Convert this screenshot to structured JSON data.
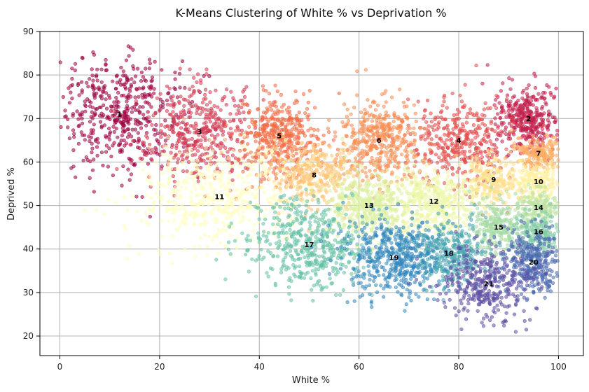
{
  "chart_data": {
    "type": "scatter",
    "title": "K-Means Clustering of White % vs Deprivation %",
    "xlabel": "White %",
    "ylabel": "Deprived %",
    "xlim": [
      -4,
      105
    ],
    "ylim": [
      15.5,
      90
    ],
    "xticks": [
      0,
      20,
      40,
      60,
      80,
      100
    ],
    "yticks": [
      20,
      30,
      40,
      50,
      60,
      70,
      80,
      90
    ],
    "grid": true,
    "point_alpha": 0.55,
    "clusters": [
      {
        "label": "1",
        "center": [
          12,
          71
        ],
        "spread": [
          6.5,
          6.5
        ],
        "count": 500,
        "color": "#9e0142"
      },
      {
        "label": "2",
        "center": [
          94,
          70
        ],
        "spread": [
          3.5,
          3.8
        ],
        "count": 380,
        "color": "#c3204d"
      },
      {
        "label": "3",
        "center": [
          28,
          67
        ],
        "spread": [
          5.0,
          5.5
        ],
        "count": 420,
        "color": "#d33c53"
      },
      {
        "label": "4",
        "center": [
          80,
          65
        ],
        "spread": [
          5.0,
          5.0
        ],
        "count": 380,
        "color": "#e14c4a"
      },
      {
        "label": "5",
        "center": [
          44,
          66
        ],
        "spread": [
          3.8,
          4.8
        ],
        "count": 420,
        "color": "#f26b43"
      },
      {
        "label": "6",
        "center": [
          64,
          65
        ],
        "spread": [
          4.2,
          4.8
        ],
        "count": 420,
        "color": "#f88c51"
      },
      {
        "label": "7",
        "center": [
          96,
          62
        ],
        "spread": [
          2.2,
          2.0
        ],
        "count": 180,
        "color": "#fdac61"
      },
      {
        "label": "8",
        "center": [
          51,
          57
        ],
        "spread": [
          4.2,
          3.8
        ],
        "count": 330,
        "color": "#fec677"
      },
      {
        "label": "9",
        "center": [
          87,
          56
        ],
        "spread": [
          3.0,
          3.0
        ],
        "count": 230,
        "color": "#fee08b"
      },
      {
        "label": "10",
        "center": [
          96,
          55.5
        ],
        "spread": [
          2.2,
          2.0
        ],
        "count": 180,
        "color": "#fef0a1"
      },
      {
        "label": "11",
        "center": [
          32,
          52
        ],
        "spread": [
          8.5,
          5.5
        ],
        "count": 520,
        "color": "#fffebe"
      },
      {
        "label": "12",
        "center": [
          75,
          51
        ],
        "spread": [
          4.5,
          3.8
        ],
        "count": 400,
        "color": "#eff8a6"
      },
      {
        "label": "13",
        "center": [
          62,
          50
        ],
        "spread": [
          4.5,
          3.8
        ],
        "count": 420,
        "color": "#dcf1a0"
      },
      {
        "label": "14",
        "center": [
          96,
          49.5
        ],
        "spread": [
          2.2,
          2.0
        ],
        "count": 170,
        "color": "#bde4a0"
      },
      {
        "label": "15",
        "center": [
          88,
          45
        ],
        "spread": [
          3.0,
          3.0
        ],
        "count": 240,
        "color": "#a5dba4"
      },
      {
        "label": "16",
        "center": [
          96,
          44
        ],
        "spread": [
          2.2,
          2.5
        ],
        "count": 170,
        "color": "#82cca5"
      },
      {
        "label": "17",
        "center": [
          50,
          41
        ],
        "spread": [
          6.0,
          5.2
        ],
        "count": 480,
        "color": "#66c2a5"
      },
      {
        "label": "18",
        "center": [
          78,
          39
        ],
        "spread": [
          4.0,
          3.8
        ],
        "count": 350,
        "color": "#4aa8b0"
      },
      {
        "label": "19",
        "center": [
          67,
          38
        ],
        "spread": [
          5.0,
          4.5
        ],
        "count": 480,
        "color": "#3489be"
      },
      {
        "label": "20",
        "center": [
          95,
          37
        ],
        "spread": [
          3.0,
          3.8
        ],
        "count": 320,
        "color": "#4a6ab1"
      },
      {
        "label": "21",
        "center": [
          86,
          32
        ],
        "spread": [
          5.0,
          4.0
        ],
        "count": 360,
        "color": "#5e4fa2"
      }
    ]
  }
}
